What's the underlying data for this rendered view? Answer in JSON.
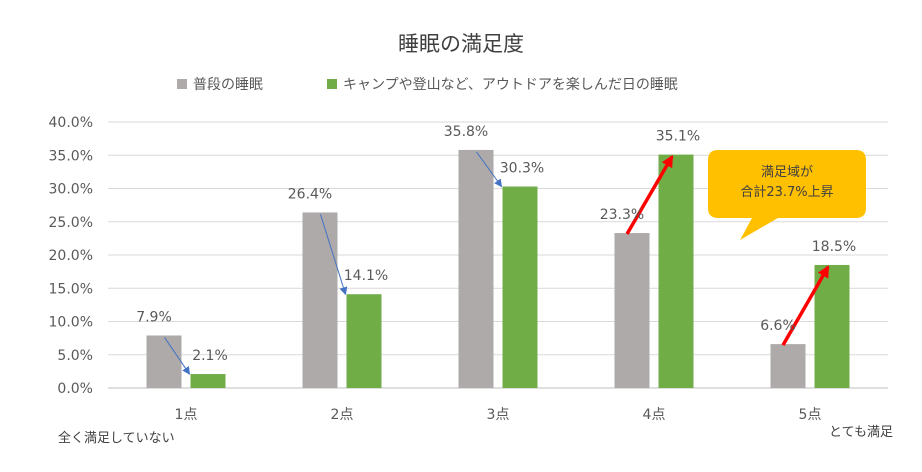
{
  "chart_data": {
    "type": "bar",
    "title": "睡眠の満足度",
    "categories": [
      "1点",
      "2点",
      "3点",
      "4点",
      "5点"
    ],
    "series": [
      {
        "name": "普段の睡眠",
        "color": "#AEAAAA",
        "values": [
          7.9,
          26.4,
          35.8,
          23.3,
          6.6
        ],
        "labels": [
          "7.9%",
          "26.4%",
          "35.8%",
          "23.3%",
          "6.6%"
        ]
      },
      {
        "name": "キャンプや登山など、アウトドアを楽しんだ日の睡眠",
        "color": "#70AD47",
        "values": [
          2.1,
          14.1,
          30.3,
          35.1,
          18.5
        ],
        "labels": [
          "2.1%",
          "14.1%",
          "30.3%",
          "35.1%",
          "18.5%"
        ]
      }
    ],
    "ylim": [
      0,
      40
    ],
    "yticks": [
      "0.0%",
      "5.0%",
      "10.0%",
      "15.0%",
      "20.0%",
      "25.0%",
      "30.0%",
      "35.0%",
      "40.0%"
    ],
    "grid": true,
    "legend": "top",
    "xlabel": "",
    "ylabel": "",
    "annotations": {
      "low_end": "全く満足していない",
      "high_end": "とても満足",
      "callout_line1": "満足域が",
      "callout_line2": "合計23.7%上昇",
      "callout_color": "#FFC000",
      "decrease_arrow_color": "#4472C4",
      "increase_arrow_color": "#FF0000"
    }
  }
}
